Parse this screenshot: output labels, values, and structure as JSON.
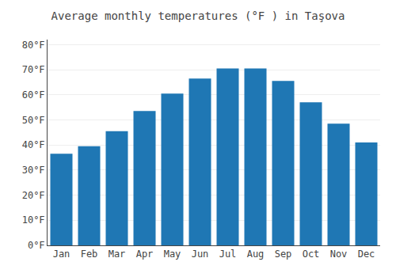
{
  "chart_data": {
    "type": "bar",
    "title": "Average monthly temperatures (°F ) in Taşova",
    "categories": [
      "Jan",
      "Feb",
      "Mar",
      "Apr",
      "May",
      "Jun",
      "Jul",
      "Aug",
      "Sep",
      "Oct",
      "Nov",
      "Dec"
    ],
    "values": [
      36.5,
      39.5,
      45.5,
      53.5,
      60.5,
      66.5,
      70.5,
      70.5,
      65.5,
      57.0,
      48.5,
      41.0
    ],
    "ylim": [
      0,
      82
    ],
    "yticks": [
      {
        "value": 0,
        "label": "0°F"
      },
      {
        "value": 10,
        "label": "10°F"
      },
      {
        "value": 20,
        "label": "20°F"
      },
      {
        "value": 30,
        "label": "30°F"
      },
      {
        "value": 40,
        "label": "40°F"
      },
      {
        "value": 50,
        "label": "50°F"
      },
      {
        "value": 60,
        "label": "60°F"
      },
      {
        "value": 70,
        "label": "70°F"
      },
      {
        "value": 80,
        "label": "80°F"
      }
    ],
    "grid": true
  }
}
